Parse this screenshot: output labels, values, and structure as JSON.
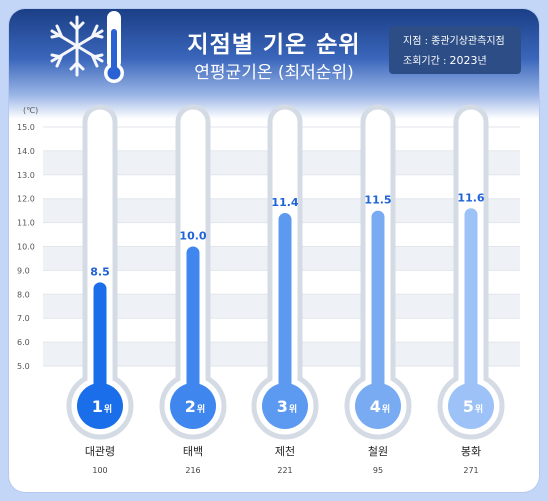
{
  "header": {
    "title": "지점별 기온 순위",
    "subtitle": "연평균기온 (최저순위)",
    "info_station": "지점 : 종관기상관측지점",
    "info_period_label": "조회기간 :",
    "info_year": "2023",
    "info_year_unit": "년"
  },
  "colors": {
    "header_dark": "#1b3f86",
    "info_box": "#2d4d86",
    "value_text": "#1f63d8",
    "tube_outline": "#d4dbe5",
    "series_fills": [
      "#1a6ee9",
      "#3f87ee",
      "#5c99f0",
      "#79abf3",
      "#9cc2f7"
    ]
  },
  "icons": {
    "header": "thermometer-snowflake-icon"
  },
  "chart_data": {
    "type": "bar",
    "title": "지점별 기온 순위",
    "subtitle": "연평균기온 (최저순위)",
    "ylabel": "(℃)",
    "ylim": [
      5.0,
      15.0
    ],
    "yticks": [
      "15.0",
      "14.0",
      "13.0",
      "12.0",
      "11.0",
      "10.0",
      "9.0",
      "8.0",
      "7.0",
      "6.0",
      "5.0"
    ],
    "grid": true,
    "rank_suffix": "위",
    "categories": [
      "대관령",
      "태백",
      "제천",
      "철원",
      "봉화"
    ],
    "codes": [
      "100",
      "216",
      "221",
      "95",
      "271"
    ],
    "ranks": [
      "1",
      "2",
      "3",
      "4",
      "5"
    ],
    "values": [
      8.5,
      10.0,
      11.4,
      11.5,
      11.6
    ],
    "value_labels": [
      "8.5",
      "10.0",
      "11.4",
      "11.5",
      "11.6"
    ]
  }
}
